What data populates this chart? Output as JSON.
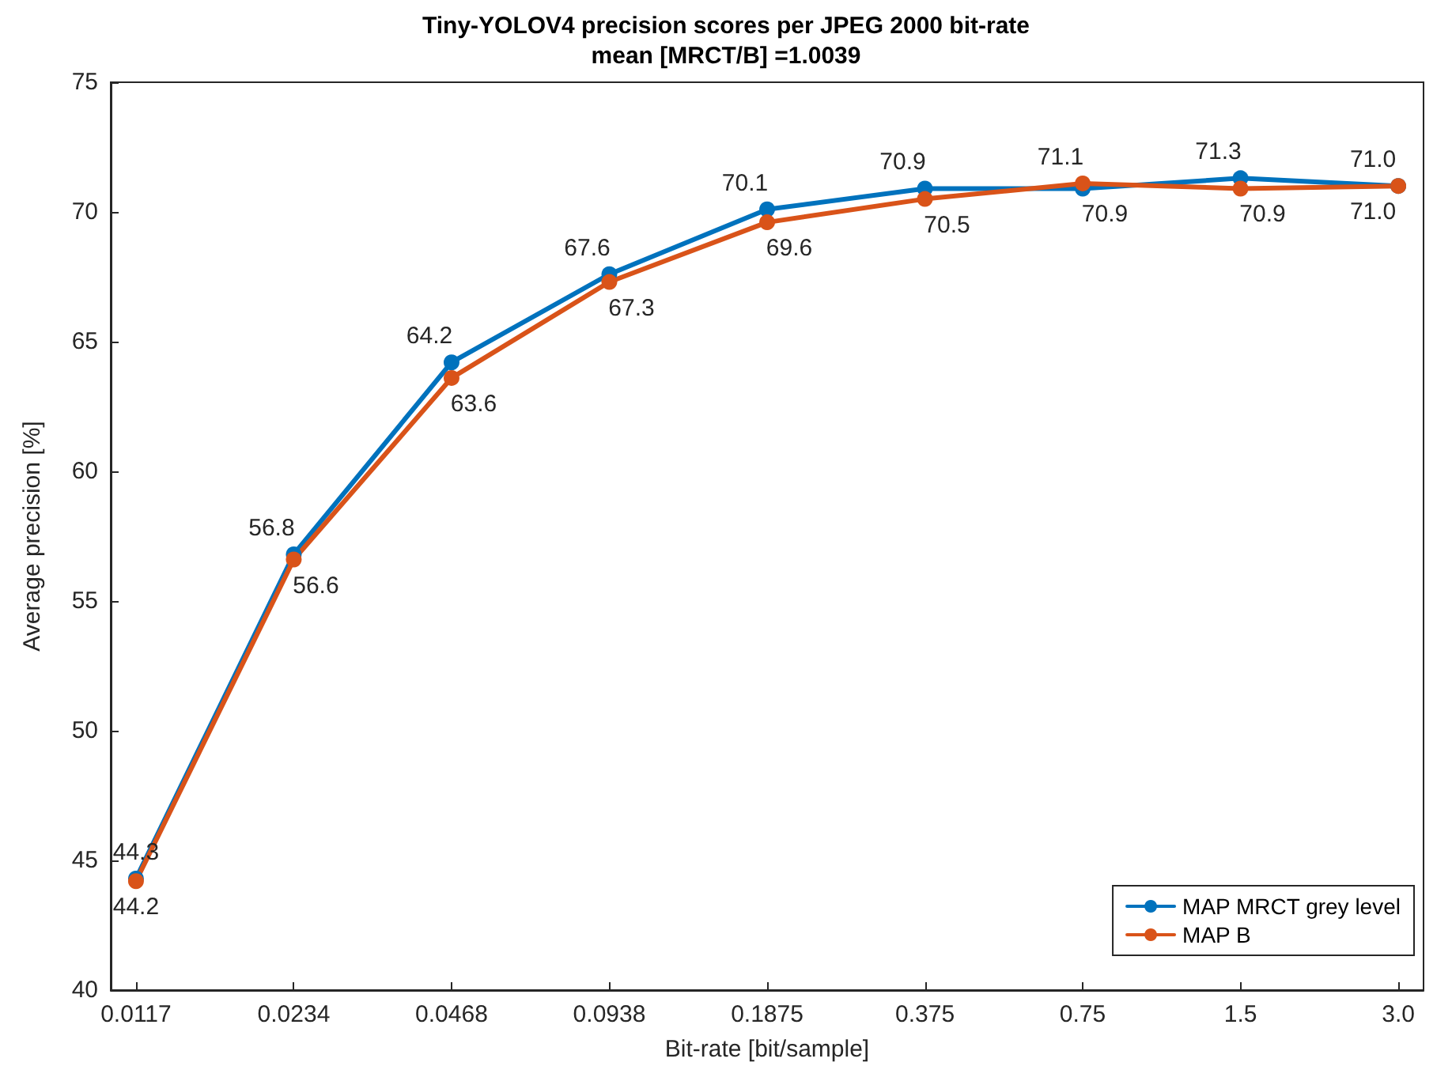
{
  "chart_data": {
    "type": "line",
    "title": "Tiny-YOLOV4 precision scores per JPEG 2000 bit-rate",
    "subtitle": "mean [MRCT/B] =1.0039",
    "xlabel": "Bit-rate [bit/sample]",
    "ylabel": "Average precision [%]",
    "categories": [
      "0.0117",
      "0.0234",
      "0.0468",
      "0.0938",
      "0.1875",
      "0.375",
      "0.75",
      "1.5",
      "3.0"
    ],
    "series": [
      {
        "name": "MAP MRCT grey level",
        "color": "#0072bd",
        "values": [
          44.3,
          56.8,
          64.2,
          67.6,
          70.1,
          70.9,
          70.9,
          71.3,
          71.0
        ],
        "value_labels": [
          "44.3",
          "56.8",
          "64.2",
          "67.6",
          "70.1",
          "70.9",
          "70.9",
          "71.3",
          "71.0"
        ]
      },
      {
        "name": "MAP B",
        "color": "#d95319",
        "values": [
          44.2,
          56.6,
          63.6,
          67.3,
          69.6,
          70.5,
          71.1,
          70.9,
          71.0
        ],
        "value_labels": [
          "44.2",
          "56.6",
          "63.6",
          "67.3",
          "69.6",
          "70.5",
          "71.1",
          "70.9",
          "71.0"
        ]
      }
    ],
    "ylim": [
      40,
      75
    ],
    "yticks": [
      40,
      45,
      50,
      55,
      60,
      65,
      70,
      75
    ],
    "grid": false,
    "legend": "bottom right",
    "marker": "circle",
    "line_style": "solid"
  }
}
